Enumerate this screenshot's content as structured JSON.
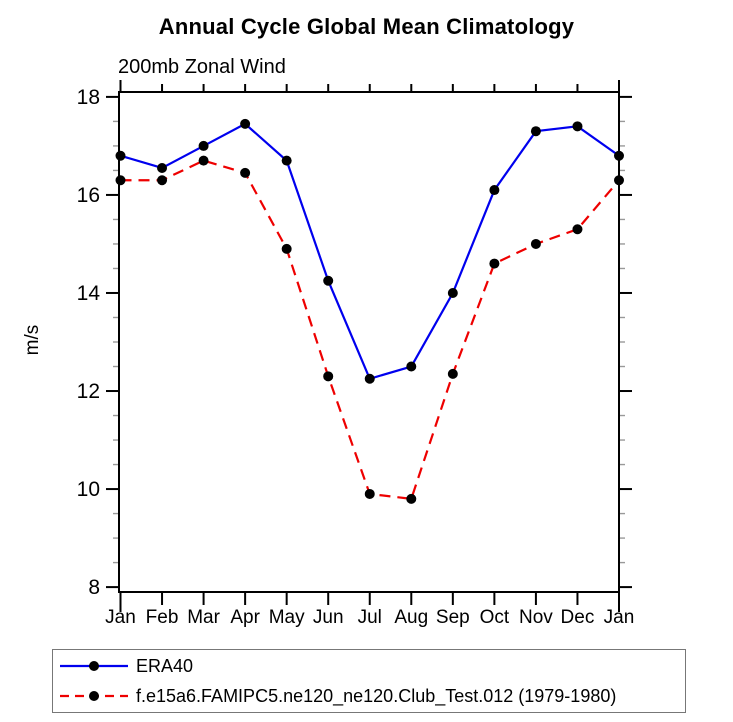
{
  "chart_data": {
    "type": "line",
    "title": "Annual Cycle Global Mean Climatology",
    "subtitle": "200mb Zonal Wind",
    "ylabel": "m/s",
    "xlabel": "",
    "categories": [
      "Jan",
      "Feb",
      "Mar",
      "Apr",
      "May",
      "Jun",
      "Jul",
      "Aug",
      "Sep",
      "Oct",
      "Nov",
      "Dec",
      "Jan"
    ],
    "yticks": [
      8,
      10,
      12,
      14,
      16,
      18
    ],
    "ylim": [
      7.9,
      18.1
    ],
    "minor_tick_step": 0.5,
    "grid": false,
    "legend_position": "bottom-left-box",
    "series": [
      {
        "name": "ERA40",
        "color": "#0000ee",
        "line_style": "solid",
        "marker": "filled-circle",
        "marker_color": "#000000",
        "values": [
          16.8,
          16.55,
          17.0,
          17.45,
          16.7,
          14.25,
          12.25,
          12.5,
          14.0,
          16.1,
          17.3,
          17.4,
          16.8
        ]
      },
      {
        "name": "f.e15a6.FAMIPC5.ne120_ne120.Club_Test.012 (1979-1980)",
        "color": "#ee0000",
        "line_style": "dashed",
        "marker": "filled-circle",
        "marker_color": "#000000",
        "values": [
          16.3,
          16.3,
          16.7,
          16.45,
          14.9,
          12.3,
          9.9,
          9.8,
          12.35,
          14.6,
          15.0,
          15.3,
          16.3
        ]
      }
    ]
  },
  "axis_colors": {
    "axis": "#000000",
    "major_tick": "#000000",
    "minor_tick": "#999999",
    "label": "#000000"
  }
}
